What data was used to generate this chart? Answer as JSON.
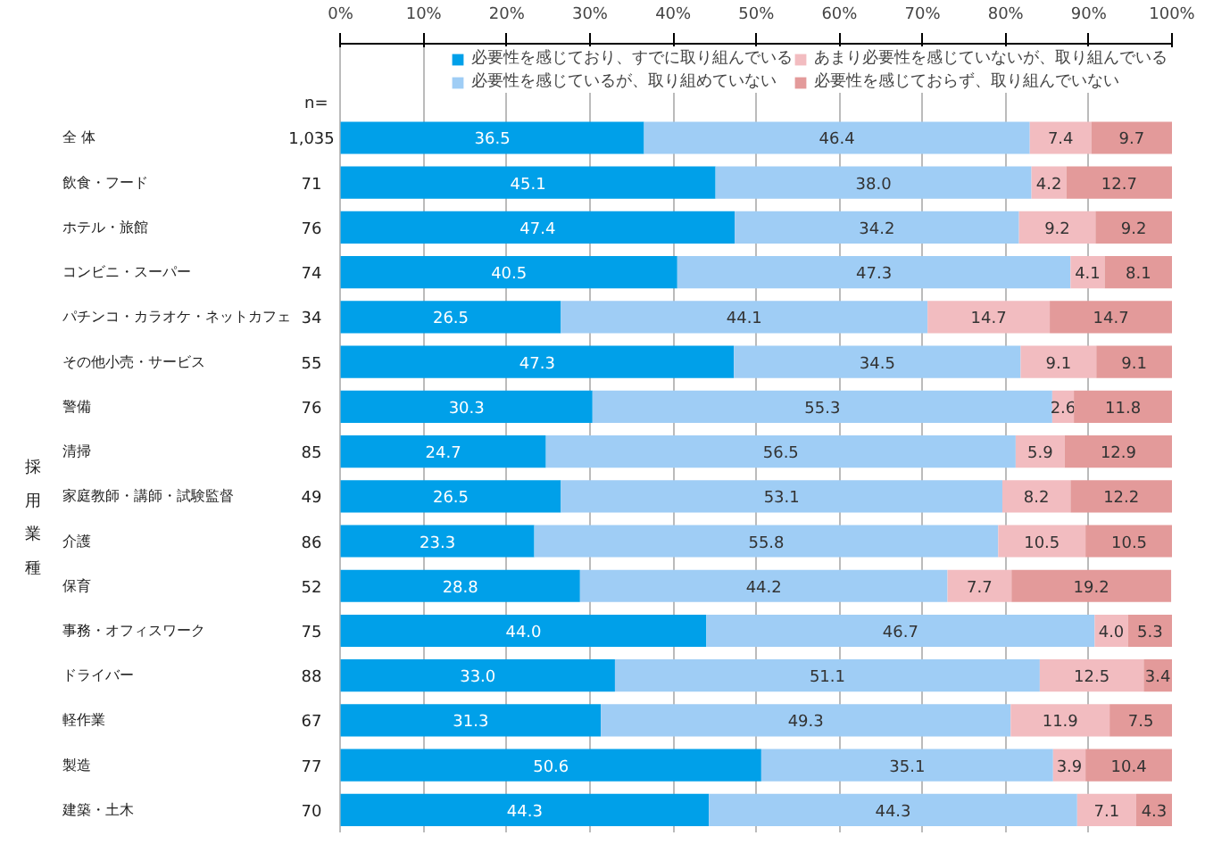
{
  "chart_data": {
    "type": "bar",
    "orientation": "horizontal",
    "stacked": true,
    "legend": "top",
    "grid": "x",
    "categories": [
      "全 体",
      "飲食・フード",
      "ホテル・旅館",
      "コンビニ・スーパー",
      "パチンコ・カラオケ・ネットカフェ",
      "その他小売・サービス",
      "警備",
      "清掃",
      "家庭教師・講師・試験監督",
      "介護",
      "保育",
      "事務・オフィスワーク",
      "ドライバー",
      "軽作業",
      "製造",
      "建築・土木"
    ],
    "series": [
      {
        "name": "必要性を感じており、すでに取り組んでいる",
        "color": "#00a0e9",
        "values": [
          36.5,
          45.1,
          47.4,
          40.5,
          26.5,
          47.3,
          30.3,
          24.7,
          26.5,
          23.3,
          28.8,
          44.0,
          33.0,
          31.3,
          50.6,
          44.3
        ],
        "value_labels": [
          "36.5",
          "45.1",
          "47.4",
          "40.5",
          "26.5",
          "47.3",
          "30.3",
          "24.7",
          "26.5",
          "23.3",
          "28.8",
          "44.0",
          "33.0",
          "31.3",
          "50.6",
          "44.3"
        ]
      },
      {
        "name": "必要性を感じているが、取り組めていない",
        "color": "#9fcdf5",
        "values": [
          46.4,
          38.0,
          34.2,
          47.3,
          44.1,
          34.5,
          55.3,
          56.5,
          53.1,
          55.8,
          44.2,
          46.7,
          51.1,
          49.3,
          35.1,
          44.3
        ],
        "value_labels": [
          "46.4",
          "38.0",
          "34.2",
          "47.3",
          "44.1",
          "34.5",
          "55.3",
          "56.5",
          "53.1",
          "55.8",
          "44.2",
          "46.7",
          "51.1",
          "49.3",
          "35.1",
          "44.3"
        ]
      },
      {
        "name": "あまり必要性を感じていないが、取り組んでいる",
        "color": "#f2bcc0",
        "values": [
          7.4,
          4.2,
          9.2,
          4.1,
          14.7,
          9.1,
          2.6,
          5.9,
          8.2,
          10.5,
          7.7,
          4.0,
          12.5,
          11.9,
          3.9,
          7.1
        ],
        "value_labels": [
          "7.4",
          "4.2",
          "9.2",
          "4.1",
          "14.7",
          "9.1",
          "2.6",
          "5.9",
          "8.2",
          "10.5",
          "7.7",
          "4.0",
          "12.5",
          "11.9",
          "3.9",
          "7.1"
        ]
      },
      {
        "name": "必要性を感じておらず、取り組んでいない",
        "color": "#e39a9a",
        "values": [
          9.7,
          12.7,
          9.2,
          8.1,
          14.7,
          9.1,
          11.8,
          12.9,
          12.2,
          10.5,
          19.2,
          5.3,
          3.4,
          7.5,
          10.4,
          4.3
        ],
        "value_labels": [
          "9.7",
          "12.7",
          "9.2",
          "8.1",
          "14.7",
          "9.1",
          "11.8",
          "12.9",
          "12.2",
          "10.5",
          "19.2",
          "5.3",
          "3.4",
          "7.5",
          "10.4",
          "4.3"
        ]
      }
    ],
    "xlim": [
      0,
      100
    ],
    "xticks": [
      {
        "value": 0,
        "label": "0%"
      },
      {
        "value": 10,
        "label": "10%"
      },
      {
        "value": 20,
        "label": "20%"
      },
      {
        "value": 30,
        "label": "30%"
      },
      {
        "value": 40,
        "label": "40%"
      },
      {
        "value": 50,
        "label": "50%"
      },
      {
        "value": 60,
        "label": "60%"
      },
      {
        "value": 70,
        "label": "70%"
      },
      {
        "value": 80,
        "label": "80%"
      },
      {
        "value": 90,
        "label": "90%"
      },
      {
        "value": 100,
        "label": "100%"
      }
    ],
    "annotations": [
      "n=",
      "採用業種",
      "1,035",
      "71",
      "76",
      "74",
      "34",
      "55",
      "76",
      "85",
      "49",
      "86",
      "52",
      "75",
      "88",
      "67",
      "77",
      "70"
    ]
  }
}
